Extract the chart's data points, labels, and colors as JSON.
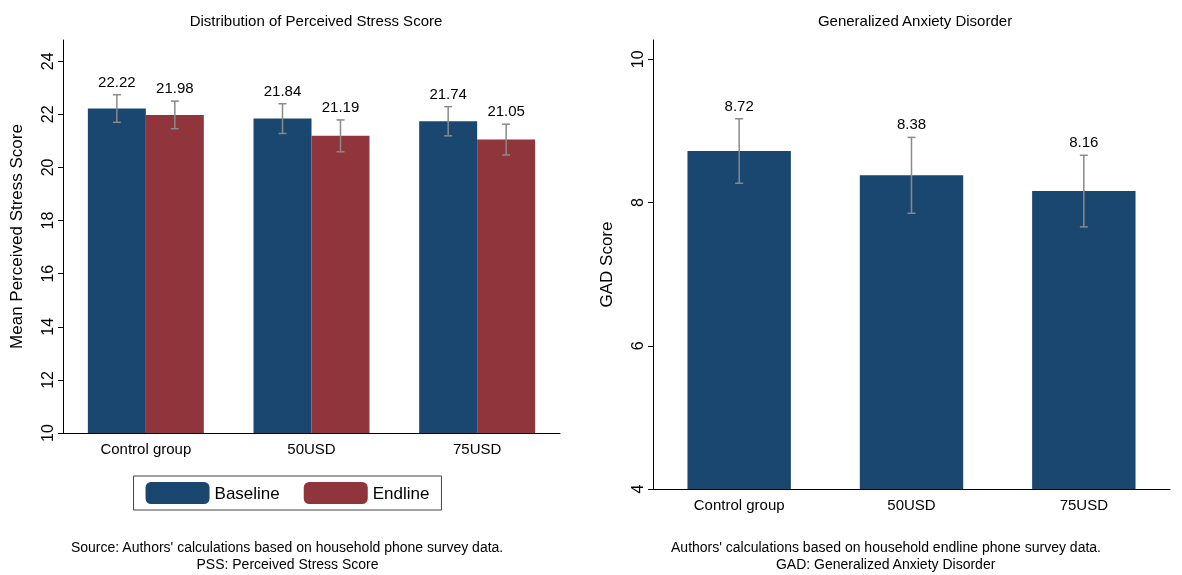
{
  "chart_data": [
    {
      "type": "bar",
      "title": "Distribution of Perceived Stress Score",
      "ylabel": "Mean Perceived Stress Score",
      "categories": [
        "Control group",
        "50USD",
        "75USD"
      ],
      "series": [
        {
          "name": "Baseline",
          "color": "#1a476f",
          "values": [
            22.22,
            21.84,
            21.74
          ],
          "errors": [
            0.52,
            0.56,
            0.55
          ]
        },
        {
          "name": "Endline",
          "color": "#90353b",
          "values": [
            21.98,
            21.19,
            21.05
          ],
          "errors": [
            0.52,
            0.6,
            0.58
          ]
        }
      ],
      "ylim": [
        10,
        24.8
      ],
      "yticks": [
        10,
        12,
        14,
        16,
        18,
        20,
        22,
        24
      ],
      "grid": false,
      "legend": "bottom",
      "data_labels": true,
      "annotations": [
        "Source: Authors' calculations based on household phone survey data.",
        "PSS: Perceived Stress Score"
      ]
    },
    {
      "type": "bar",
      "title": "Generalized Anxiety Disorder",
      "ylabel": "GAD Score",
      "categories": [
        "Control group",
        "50USD",
        "75USD"
      ],
      "series": [
        {
          "color": "#1a476f",
          "values": [
            8.72,
            8.38,
            8.16
          ],
          "errors": [
            0.45,
            0.53,
            0.5
          ]
        }
      ],
      "ylim": [
        4,
        10.27
      ],
      "yticks": [
        4,
        6,
        8,
        10
      ],
      "grid": false,
      "legend": false,
      "data_labels": true,
      "annotations": [
        "Authors' calculations based on household endline phone survey data.",
        "GAD: Generalized Anxiety Disorder"
      ]
    }
  ]
}
